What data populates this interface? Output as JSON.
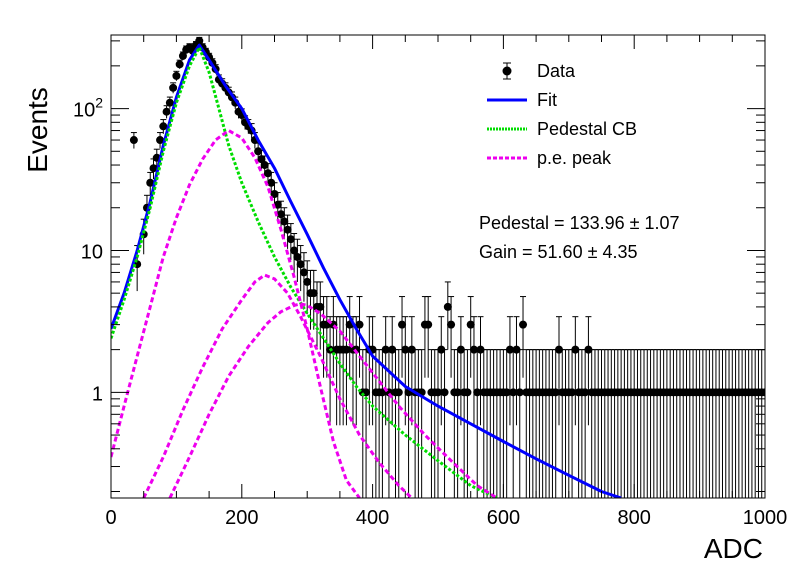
{
  "chart_data": {
    "type": "scatter",
    "xlabel": "ADC",
    "ylabel": "Events",
    "xlim": [
      0,
      1000
    ],
    "ylim": [
      0.18,
      330
    ],
    "yscale": "log",
    "grid": false,
    "legend_position": "top-right",
    "x_ticks": [
      "0",
      "200",
      "400",
      "600",
      "800",
      "1000"
    ],
    "y_ticks": [
      {
        "value": 1,
        "base": "1",
        "exp": ""
      },
      {
        "value": 10,
        "base": "10",
        "exp": ""
      },
      {
        "value": 100,
        "base": "10",
        "exp": "2"
      }
    ],
    "annotations": [
      "Pedestal = 133.96 ± 1.07",
      "Gain = 51.60 ± 4.35"
    ],
    "series": [
      {
        "name": "Data",
        "kind": "points-with-errors",
        "color": "#000000",
        "x": [
          35,
          40,
          50,
          55,
          60,
          65,
          70,
          75,
          80,
          85,
          90,
          95,
          100,
          105,
          110,
          115,
          120,
          125,
          130,
          135,
          140,
          145,
          150,
          155,
          160,
          165,
          170,
          175,
          180,
          185,
          190,
          195,
          200,
          205,
          210,
          215,
          220,
          225,
          230,
          235,
          240,
          245,
          250,
          255,
          260,
          265,
          270,
          275,
          280,
          285,
          290,
          295,
          300,
          305,
          310,
          315,
          320,
          325,
          330,
          335,
          340,
          345,
          350,
          355,
          360,
          365,
          370,
          375,
          380,
          385,
          390,
          395,
          400,
          405,
          410,
          415,
          420,
          425,
          430,
          435,
          440,
          445,
          450,
          455,
          460,
          465,
          470,
          475,
          480,
          485,
          490,
          495,
          500,
          505,
          510,
          515,
          520,
          525,
          530,
          535,
          540,
          545,
          550,
          555,
          560,
          565,
          570,
          575,
          580,
          585,
          590,
          595,
          600,
          605,
          610,
          615,
          620,
          625,
          630,
          635,
          640,
          645,
          650,
          655,
          660,
          665,
          670,
          675,
          680,
          685,
          690,
          695,
          700,
          705,
          710,
          715,
          720,
          725,
          730,
          735,
          740,
          745,
          750,
          755,
          760,
          765,
          770,
          775,
          780,
          785,
          790,
          795,
          800,
          805,
          810,
          815,
          820,
          825,
          830,
          835,
          840,
          845,
          850,
          855,
          860,
          865,
          870,
          875,
          880,
          885,
          890,
          895,
          900,
          905,
          910,
          915,
          920,
          925,
          930,
          935,
          940,
          945,
          950,
          955,
          960,
          965,
          970,
          975,
          980,
          985,
          990,
          995,
          1000
        ],
        "y": [
          60,
          8,
          13,
          20,
          30,
          38,
          45,
          60,
          75,
          95,
          110,
          140,
          170,
          205,
          235,
          260,
          270,
          255,
          280,
          300,
          270,
          250,
          230,
          210,
          190,
          160,
          150,
          140,
          130,
          120,
          110,
          95,
          90,
          80,
          75,
          70,
          60,
          50,
          44,
          40,
          35,
          30,
          25,
          21,
          18,
          16,
          14,
          12,
          10,
          9,
          8,
          7,
          6,
          5,
          5,
          4,
          4,
          3,
          3,
          2,
          3,
          2,
          2,
          2,
          2,
          3,
          2,
          2,
          3,
          1,
          1,
          2,
          2,
          1,
          1,
          1,
          2,
          1,
          2,
          1,
          1,
          3,
          2,
          1,
          2,
          1,
          1,
          1,
          3,
          3,
          1,
          1,
          1,
          2,
          1,
          4,
          3,
          1,
          1,
          2,
          1,
          1,
          3,
          2,
          1,
          2,
          1,
          1,
          1,
          1,
          1,
          1,
          1,
          1,
          2,
          1,
          2,
          1,
          3,
          1,
          1,
          1,
          1,
          1,
          1,
          1,
          1,
          1,
          1,
          2,
          1,
          1,
          1,
          1,
          2,
          1,
          1,
          1,
          2,
          1,
          1,
          1,
          1,
          1,
          1,
          1,
          1,
          1,
          1,
          1,
          1,
          1,
          1,
          1,
          1,
          1,
          1,
          1,
          1,
          1,
          1,
          1,
          1,
          1,
          1,
          1,
          1,
          1,
          1,
          1,
          1,
          1,
          1,
          1,
          1,
          1,
          1,
          1,
          1,
          1,
          1,
          1,
          1,
          1,
          1,
          1,
          1,
          1,
          1,
          1,
          1,
          1,
          1
        ]
      },
      {
        "name": "Fit",
        "kind": "line",
        "color": "#0000ff",
        "dash": "",
        "x": [
          0,
          20,
          40,
          60,
          80,
          100,
          120,
          135,
          150,
          175,
          200,
          225,
          250,
          275,
          300,
          325,
          350,
          375,
          400,
          450,
          500,
          550,
          600,
          650,
          700,
          750,
          780
        ],
        "y": [
          2.8,
          5,
          10,
          22,
          55,
          120,
          220,
          280,
          220,
          145,
          100,
          60,
          38,
          22,
          13,
          7.5,
          4.5,
          2.8,
          1.8,
          1.1,
          0.8,
          0.6,
          0.45,
          0.34,
          0.26,
          0.2,
          0.18
        ]
      },
      {
        "name": "Pedestal CB",
        "kind": "line",
        "color": "#00dd00",
        "dash": "3,2",
        "x": [
          0,
          20,
          40,
          60,
          80,
          100,
          120,
          135,
          150,
          165,
          180,
          200,
          225,
          250,
          275,
          300,
          325,
          350,
          375,
          400,
          450,
          500,
          550,
          590
        ],
        "y": [
          2.4,
          4.5,
          9,
          20,
          50,
          110,
          200,
          270,
          180,
          100,
          55,
          30,
          16,
          9,
          5.5,
          3.6,
          2.4,
          1.6,
          1.1,
          0.8,
          0.5,
          0.33,
          0.22,
          0.18
        ]
      },
      {
        "name": "p.e. peak",
        "kind": "line",
        "color": "#ee00ee",
        "dash": "5,3",
        "x": [
          0,
          20,
          40,
          60,
          80,
          100,
          120,
          140,
          160,
          180,
          200,
          220,
          240,
          260,
          280,
          300,
          320,
          340,
          360,
          380
        ],
        "y": [
          0.35,
          0.8,
          1.8,
          4,
          9,
          17,
          29,
          44,
          60,
          70,
          62,
          45,
          28,
          14,
          6.5,
          2.8,
          1.1,
          0.45,
          0.24,
          0.18
        ]
      },
      {
        "name": "",
        "kind": "line",
        "color": "#ee00ee",
        "dash": "5,3",
        "x": [
          50,
          80,
          110,
          140,
          170,
          200,
          220,
          235,
          250,
          270,
          290,
          320,
          350,
          380,
          410,
          440,
          460
        ],
        "y": [
          0.18,
          0.35,
          0.75,
          1.5,
          2.8,
          4.5,
          6,
          6.7,
          6.3,
          5,
          3.4,
          1.8,
          0.9,
          0.5,
          0.32,
          0.22,
          0.18
        ]
      },
      {
        "name": "",
        "kind": "line",
        "color": "#ee00ee",
        "dash": "5,3",
        "x": [
          90,
          120,
          150,
          180,
          210,
          240,
          260,
          280,
          290,
          300,
          320,
          350,
          380,
          410,
          440,
          480,
          520,
          560,
          590
        ],
        "y": [
          0.18,
          0.35,
          0.7,
          1.3,
          2.1,
          3.1,
          3.7,
          4.1,
          4.2,
          4.1,
          3.6,
          2.7,
          1.8,
          1.2,
          0.8,
          0.5,
          0.33,
          0.22,
          0.18
        ]
      }
    ]
  }
}
